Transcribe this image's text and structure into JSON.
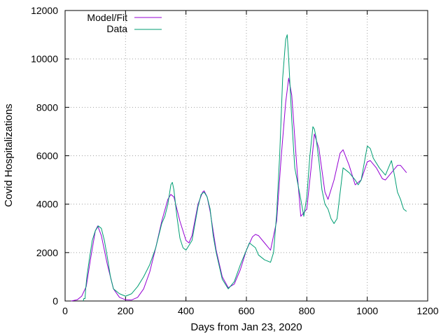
{
  "chart_data": {
    "type": "line",
    "title": "",
    "xlabel": "Days from Jan 23, 2020",
    "ylabel": "Covid Hospitalizations",
    "xlim": [
      0,
      1200
    ],
    "ylim": [
      0,
      12000
    ],
    "xticks": [
      0,
      200,
      400,
      600,
      800,
      1000,
      1200
    ],
    "yticks": [
      0,
      2000,
      4000,
      6000,
      8000,
      10000,
      12000
    ],
    "grid": true,
    "legend": "top-left",
    "series": [
      {
        "name": "Model/Fit",
        "color": "#9400d3",
        "x": [
          20,
          40,
          55,
          70,
          85,
          100,
          108,
          120,
          140,
          160,
          180,
          200,
          220,
          240,
          260,
          280,
          300,
          320,
          340,
          350,
          360,
          380,
          400,
          410,
          420,
          440,
          455,
          460,
          470,
          480,
          500,
          520,
          540,
          560,
          580,
          600,
          620,
          630,
          640,
          660,
          680,
          700,
          715,
          730,
          740,
          750,
          770,
          780,
          800,
          815,
          825,
          840,
          860,
          870,
          890,
          910,
          920,
          940,
          960,
          980,
          1000,
          1010,
          1030,
          1050,
          1060,
          1080,
          1100,
          1110,
          1130
        ],
        "y": [
          0,
          50,
          200,
          600,
          1800,
          2900,
          3100,
          2700,
          1500,
          500,
          150,
          50,
          40,
          150,
          500,
          1200,
          2200,
          3300,
          4200,
          4400,
          4300,
          3300,
          2500,
          2400,
          2700,
          4000,
          4500,
          4550,
          4300,
          3700,
          2100,
          1000,
          550,
          700,
          1300,
          2100,
          2650,
          2750,
          2700,
          2400,
          2100,
          3300,
          5900,
          8200,
          9200,
          8500,
          5000,
          3500,
          3800,
          5600,
          6900,
          6300,
          4500,
          4200,
          5000,
          6100,
          6250,
          5600,
          4800,
          5000,
          5750,
          5800,
          5500,
          5050,
          5000,
          5300,
          5600,
          5600,
          5300
        ]
      },
      {
        "name": "Data",
        "color": "#009e73",
        "x": [
          60,
          62,
          66,
          68,
          72,
          80,
          90,
          100,
          110,
          120,
          130,
          140,
          150,
          160,
          180,
          200,
          220,
          240,
          260,
          280,
          300,
          320,
          330,
          340,
          350,
          355,
          360,
          370,
          380,
          390,
          400,
          410,
          420,
          440,
          450,
          460,
          470,
          480,
          490,
          500,
          520,
          540,
          560,
          580,
          600,
          610,
          620,
          630,
          640,
          660,
          680,
          690,
          700,
          710,
          720,
          730,
          735,
          740,
          750,
          760,
          780,
          790,
          800,
          810,
          820,
          825,
          830,
          840,
          850,
          860,
          870,
          880,
          890,
          900,
          920,
          940,
          960,
          970,
          980,
          1000,
          1010,
          1020,
          1040,
          1060,
          1080,
          1090,
          1100,
          1110,
          1120,
          1130
        ],
        "y": [
          0,
          100,
          100,
          500,
          1000,
          1700,
          2500,
          2900,
          3100,
          3000,
          2500,
          1800,
          1000,
          500,
          300,
          200,
          300,
          600,
          1000,
          1500,
          2200,
          3200,
          3500,
          4000,
          4800,
          4900,
          4600,
          3500,
          2600,
          2200,
          2100,
          2300,
          2500,
          3900,
          4400,
          4500,
          4300,
          3800,
          2700,
          2000,
          900,
          500,
          800,
          1500,
          2100,
          2400,
          2300,
          2200,
          1900,
          1700,
          1600,
          2000,
          3600,
          6000,
          9200,
          10800,
          11000,
          10000,
          7500,
          5500,
          4200,
          3500,
          4300,
          6000,
          7200,
          7100,
          6800,
          5800,
          4600,
          4000,
          3800,
          3400,
          3200,
          3400,
          5500,
          5300,
          5000,
          4800,
          5000,
          6400,
          6300,
          5900,
          5500,
          5200,
          5800,
          5200,
          4500,
          4200,
          3800,
          3700
        ]
      }
    ]
  }
}
